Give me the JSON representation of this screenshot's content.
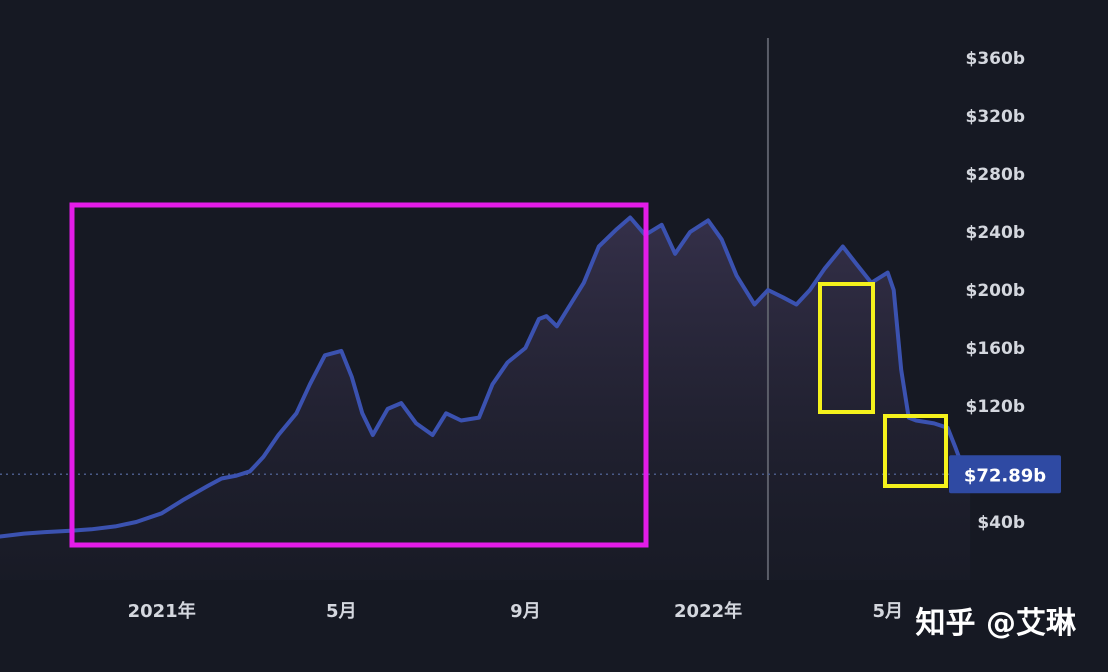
{
  "chart_data": {
    "type": "area",
    "y_ticks": [
      "$40b",
      "$72.89b",
      "$120b",
      "$160b",
      "$200b",
      "$240b",
      "$280b",
      "$320b",
      "$360b"
    ],
    "ylim": [
      0,
      380
    ],
    "x_ticks": [
      {
        "label": "2021年",
        "value": "2021-01-01"
      },
      {
        "label": "5月",
        "value": "2021-05-01"
      },
      {
        "label": "9月",
        "value": "2021-09-01"
      },
      {
        "label": "2022年",
        "value": "2022-01-01"
      },
      {
        "label": "5月",
        "value": "2022-05-01"
      }
    ],
    "xlim": [
      "2020-09-15",
      "2022-07-15"
    ],
    "current_value": 72.89,
    "current_label": "$72.89b",
    "crosshair_date": "2022-02-10",
    "series": [
      {
        "x": [
          "2020-09-15",
          "2020-10-01",
          "2020-10-15",
          "2020-11-01",
          "2020-11-15",
          "2020-12-01",
          "2020-12-15",
          "2021-01-01",
          "2021-01-15",
          "2021-02-01",
          "2021-02-10",
          "2021-02-20",
          "2021-03-01",
          "2021-03-10",
          "2021-03-20",
          "2021-04-01",
          "2021-04-10",
          "2021-04-20",
          "2021-05-01",
          "2021-05-08",
          "2021-05-15",
          "2021-05-22",
          "2021-06-01",
          "2021-06-10",
          "2021-06-20",
          "2021-07-01",
          "2021-07-10",
          "2021-07-20",
          "2021-08-01",
          "2021-08-10",
          "2021-08-20",
          "2021-09-01",
          "2021-09-10",
          "2021-09-15",
          "2021-09-22",
          "2021-10-01",
          "2021-10-10",
          "2021-10-20",
          "2021-11-01",
          "2021-11-10",
          "2021-11-20",
          "2021-12-01",
          "2021-12-10",
          "2021-12-20",
          "2022-01-01",
          "2022-01-10",
          "2022-01-20",
          "2022-02-01",
          "2022-02-10",
          "2022-02-20",
          "2022-03-01",
          "2022-03-10",
          "2022-03-20",
          "2022-04-01",
          "2022-04-10",
          "2022-04-20",
          "2022-05-01",
          "2022-05-05",
          "2022-05-10",
          "2022-05-15",
          "2022-05-20",
          "2022-06-01",
          "2022-06-10",
          "2022-06-15",
          "2022-06-20",
          "2022-06-25"
        ],
        "values": [
          30,
          32,
          33,
          34,
          35,
          37,
          40,
          46,
          55,
          65,
          70,
          72,
          75,
          85,
          100,
          115,
          135,
          155,
          158,
          140,
          115,
          100,
          118,
          122,
          108,
          100,
          115,
          110,
          112,
          135,
          150,
          160,
          180,
          182,
          175,
          190,
          205,
          230,
          242,
          250,
          238,
          245,
          225,
          240,
          248,
          235,
          210,
          190,
          200,
          195,
          190,
          200,
          215,
          230,
          218,
          205,
          212,
          200,
          145,
          112,
          110,
          108,
          105,
          92,
          78,
          73
        ]
      }
    ]
  },
  "watermark": "知乎 @艾琳",
  "colors": {
    "line": "#3b52b0",
    "area_top": "#3a3450",
    "background": "#161923",
    "highlight_magenta": "#e31ce8",
    "highlight_yellow": "#f4f11c",
    "badge": "#2f4aa3"
  }
}
